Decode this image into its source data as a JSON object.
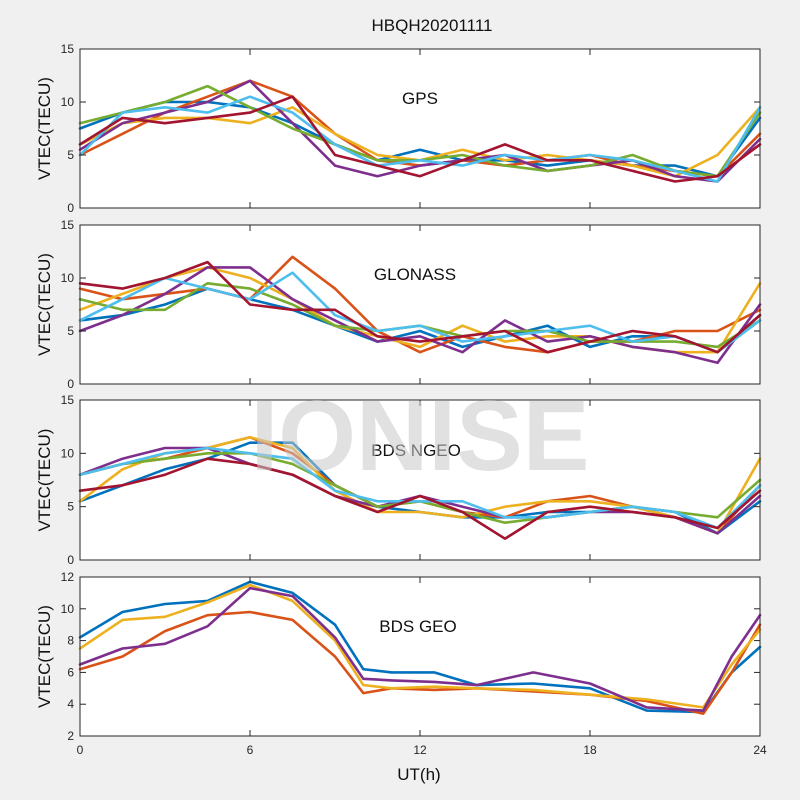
{
  "figure": {
    "title": "HBQH20201111",
    "watermark": "IONISE",
    "xlabel": "UT(h)"
  },
  "chart_data": [
    {
      "type": "line",
      "panel_label": "GPS",
      "ylabel": "VTEC(TECU)",
      "xlim": [
        0,
        24
      ],
      "ylim": [
        0,
        15
      ],
      "xticks": [
        "0",
        "6",
        "12",
        "18",
        "24"
      ],
      "yticks": [
        "0",
        "5",
        "10",
        "15"
      ],
      "grid": false,
      "series": [
        {
          "color": "#0072BD",
          "x": [
            0,
            1.5,
            3,
            4.5,
            6,
            7.5,
            9,
            10.5,
            12,
            13.5,
            15,
            16.5,
            18,
            19.5,
            21,
            22.5,
            24
          ],
          "y": [
            7.5,
            9,
            10,
            10,
            9.5,
            8,
            6,
            4.5,
            5.5,
            4.5,
            4.5,
            4,
            4.5,
            4,
            4,
            3,
            8.5
          ]
        },
        {
          "color": "#D95319",
          "x": [
            0,
            1.5,
            3,
            4.5,
            6,
            7.5,
            9,
            10.5,
            12,
            13.5,
            15,
            16.5,
            18,
            19.5,
            21,
            22.5,
            24
          ],
          "y": [
            5,
            7,
            9,
            10.5,
            12,
            10.5,
            7,
            4.5,
            4,
            4.5,
            4,
            4.5,
            5,
            4,
            3.5,
            3,
            7
          ]
        },
        {
          "color": "#EDB120",
          "x": [
            0,
            1.5,
            3,
            4.5,
            6,
            7.5,
            9,
            10.5,
            12,
            13.5,
            15,
            16.5,
            18,
            19.5,
            21,
            22.5,
            24
          ],
          "y": [
            6,
            8,
            8.5,
            8.5,
            8,
            9.5,
            7,
            5,
            4.5,
            5.5,
            4.5,
            5,
            4.5,
            4,
            3,
            5,
            9.5
          ]
        },
        {
          "color": "#7E2F8E",
          "x": [
            0,
            1.5,
            3,
            4.5,
            6,
            7.5,
            9,
            10.5,
            12,
            13.5,
            15,
            16.5,
            18,
            19.5,
            21,
            22.5,
            24
          ],
          "y": [
            5.5,
            8,
            9,
            10,
            12,
            8,
            4,
            3,
            4,
            4.5,
            5,
            3.5,
            4,
            4.5,
            3,
            2.5,
            6.5
          ]
        },
        {
          "color": "#77AC30",
          "x": [
            0,
            1.5,
            3,
            4.5,
            6,
            7.5,
            9,
            10.5,
            12,
            13.5,
            15,
            16.5,
            18,
            19.5,
            21,
            22.5,
            24
          ],
          "y": [
            8,
            9,
            10,
            11.5,
            9.5,
            7.5,
            6,
            4.5,
            4.5,
            5,
            4,
            3.5,
            4,
            5,
            3.5,
            3,
            9
          ]
        },
        {
          "color": "#4DBEEE",
          "x": [
            0,
            1.5,
            3,
            4.5,
            6,
            7.5,
            9,
            10.5,
            12,
            13.5,
            15,
            16.5,
            18,
            19.5,
            21,
            22.5,
            24
          ],
          "y": [
            5,
            9,
            9.5,
            9,
            10.5,
            9,
            6,
            4,
            4.5,
            4,
            5,
            4.5,
            5,
            4.5,
            3.5,
            2.5,
            9.5
          ]
        },
        {
          "color": "#A2142F",
          "x": [
            0,
            1.5,
            3,
            4.5,
            6,
            7.5,
            9,
            10.5,
            12,
            13.5,
            15,
            16.5,
            18,
            19.5,
            21,
            22.5,
            24
          ],
          "y": [
            6,
            8.5,
            8,
            8.5,
            9,
            10.5,
            5,
            4,
            3,
            4.5,
            6,
            4.5,
            4.5,
            3.5,
            2.5,
            3,
            6
          ]
        }
      ]
    },
    {
      "type": "line",
      "panel_label": "GLONASS",
      "ylabel": "VTEC(TECU)",
      "xlim": [
        0,
        24
      ],
      "ylim": [
        0,
        15
      ],
      "xticks": [
        "0",
        "6",
        "12",
        "18",
        "24"
      ],
      "yticks": [
        "0",
        "5",
        "10",
        "15"
      ],
      "grid": false,
      "series": [
        {
          "color": "#0072BD",
          "x": [
            0,
            1.5,
            3,
            4.5,
            6,
            7.5,
            9,
            10.5,
            12,
            13.5,
            15,
            16.5,
            18,
            19.5,
            21,
            22.5,
            24
          ],
          "y": [
            6,
            6.5,
            7.5,
            9,
            8,
            7,
            5.5,
            4,
            5,
            3.5,
            4.5,
            5.5,
            3.5,
            4.5,
            4.5,
            3,
            6.5
          ]
        },
        {
          "color": "#D95319",
          "x": [
            0,
            1.5,
            3,
            4.5,
            6,
            7.5,
            9,
            10.5,
            12,
            13.5,
            15,
            16.5,
            18,
            19.5,
            21,
            22.5,
            24
          ],
          "y": [
            9,
            8,
            8.5,
            9,
            8,
            12,
            9,
            5,
            3,
            4.5,
            3.5,
            3,
            4,
            4,
            5,
            5,
            7
          ]
        },
        {
          "color": "#EDB120",
          "x": [
            0,
            1.5,
            3,
            4.5,
            6,
            7.5,
            9,
            10.5,
            12,
            13.5,
            15,
            16.5,
            18,
            19.5,
            21,
            22.5,
            24
          ],
          "y": [
            7,
            8.5,
            10,
            11,
            10,
            8,
            5.5,
            4.5,
            3.5,
            5.5,
            4,
            4.5,
            4.5,
            3.5,
            3,
            3,
            9.5
          ]
        },
        {
          "color": "#7E2F8E",
          "x": [
            0,
            1.5,
            3,
            4.5,
            6,
            7.5,
            9,
            10.5,
            12,
            13.5,
            15,
            16.5,
            18,
            19.5,
            21,
            22.5,
            24
          ],
          "y": [
            5,
            6.5,
            8.5,
            11,
            11,
            8,
            6,
            4,
            4.5,
            3,
            6,
            4,
            4.5,
            3.5,
            3,
            2,
            7.5
          ]
        },
        {
          "color": "#77AC30",
          "x": [
            0,
            1.5,
            3,
            4.5,
            6,
            7.5,
            9,
            10.5,
            12,
            13.5,
            15,
            16.5,
            18,
            19.5,
            21,
            22.5,
            24
          ],
          "y": [
            8,
            7,
            7,
            9.5,
            9,
            7.5,
            5.5,
            5,
            5.5,
            4.5,
            5,
            5,
            4,
            4,
            4,
            3.5,
            6
          ]
        },
        {
          "color": "#4DBEEE",
          "x": [
            0,
            1.5,
            3,
            4.5,
            6,
            7.5,
            9,
            10.5,
            12,
            13.5,
            15,
            16.5,
            18,
            19.5,
            21,
            22.5,
            24
          ],
          "y": [
            6,
            8,
            10,
            9,
            8,
            10.5,
            6.5,
            5,
            5.5,
            4,
            4.5,
            5,
            5.5,
            4,
            4.5,
            3,
            6
          ]
        },
        {
          "color": "#A2142F",
          "x": [
            0,
            1.5,
            3,
            4.5,
            6,
            7.5,
            9,
            10.5,
            12,
            13.5,
            15,
            16.5,
            18,
            19.5,
            21,
            22.5,
            24
          ],
          "y": [
            9.5,
            9,
            10,
            11.5,
            7.5,
            7,
            7,
            4.5,
            4,
            4.5,
            5,
            3,
            4,
            5,
            4.5,
            3,
            6.5
          ]
        }
      ]
    },
    {
      "type": "line",
      "panel_label": "BDS NGEO",
      "ylabel": "VTEC(TECU)",
      "xlim": [
        0,
        24
      ],
      "ylim": [
        0,
        15
      ],
      "xticks": [
        "0",
        "6",
        "12",
        "18",
        "24"
      ],
      "yticks": [
        "0",
        "5",
        "10",
        "15"
      ],
      "grid": false,
      "series": [
        {
          "color": "#0072BD",
          "x": [
            0,
            1.5,
            3,
            4.5,
            6,
            7.5,
            9,
            10.5,
            12,
            13.5,
            15,
            16.5,
            18,
            19.5,
            21,
            22.5,
            24
          ],
          "y": [
            5.5,
            7,
            8.5,
            9.5,
            11,
            11,
            7,
            5,
            4.5,
            4,
            4,
            4.5,
            4.5,
            5,
            4.5,
            2.5,
            5.5
          ]
        },
        {
          "color": "#D95319",
          "x": [
            0,
            1.5,
            3,
            4.5,
            6,
            7.5,
            9,
            10.5,
            12,
            13.5,
            15,
            16.5,
            18,
            19.5,
            21,
            22.5,
            24
          ],
          "y": [
            8,
            9,
            9.5,
            10.5,
            11.5,
            10,
            7,
            5,
            5.5,
            4.5,
            4,
            5.5,
            6,
            5,
            4,
            2.5,
            7
          ]
        },
        {
          "color": "#EDB120",
          "x": [
            0,
            1.5,
            3,
            4.5,
            6,
            7.5,
            9,
            10.5,
            12,
            13.5,
            15,
            16.5,
            18,
            19.5,
            21,
            22.5,
            24
          ],
          "y": [
            5.5,
            8.5,
            10,
            10.5,
            11.5,
            10.5,
            6.5,
            4.5,
            4.5,
            4,
            5,
            5.5,
            5.5,
            5,
            4,
            2.5,
            9.5
          ]
        },
        {
          "color": "#7E2F8E",
          "x": [
            0,
            1.5,
            3,
            4.5,
            6,
            7.5,
            9,
            10.5,
            12,
            13.5,
            15,
            16.5,
            18,
            19.5,
            21,
            22.5,
            24
          ],
          "y": [
            8,
            9.5,
            10.5,
            10.5,
            9,
            8,
            6,
            5,
            6,
            5,
            4,
            4,
            4.5,
            4.5,
            4,
            2.5,
            6
          ]
        },
        {
          "color": "#77AC30",
          "x": [
            0,
            1.5,
            3,
            4.5,
            6,
            7.5,
            9,
            10.5,
            12,
            13.5,
            15,
            16.5,
            18,
            19.5,
            21,
            22.5,
            24
          ],
          "y": [
            8,
            9,
            9.5,
            10,
            10,
            9,
            7,
            5,
            5.5,
            4.5,
            3.5,
            4,
            4.5,
            5,
            4.5,
            4,
            7.5
          ]
        },
        {
          "color": "#4DBEEE",
          "x": [
            0,
            1.5,
            3,
            4.5,
            6,
            7.5,
            9,
            10.5,
            12,
            13.5,
            15,
            16.5,
            18,
            19.5,
            21,
            22.5,
            24
          ],
          "y": [
            8,
            9,
            10,
            10.5,
            10,
            9.5,
            6.5,
            5.5,
            5.5,
            5.5,
            4,
            4,
            4.5,
            5,
            4.5,
            3,
            7
          ]
        },
        {
          "color": "#A2142F",
          "x": [
            0,
            1.5,
            3,
            4.5,
            6,
            7.5,
            9,
            10.5,
            12,
            13.5,
            15,
            16.5,
            18,
            19.5,
            21,
            22.5,
            24
          ],
          "y": [
            6.5,
            7,
            8,
            9.5,
            9,
            8,
            6,
            4.5,
            6,
            4.5,
            2,
            4.5,
            5,
            4.5,
            4,
            3,
            6.5
          ]
        }
      ]
    },
    {
      "type": "line",
      "panel_label": "BDS GEO",
      "ylabel": "VTEC(TECU)",
      "xlim": [
        0,
        24
      ],
      "ylim": [
        2,
        12
      ],
      "xticks": [
        "0",
        "6",
        "12",
        "18",
        "24"
      ],
      "yticks": [
        "2",
        "4",
        "6",
        "8",
        "10",
        "12"
      ],
      "grid": false,
      "series": [
        {
          "color": "#0072BD",
          "x": [
            0,
            1.5,
            3,
            4.5,
            6,
            7.5,
            9,
            10,
            11,
            12.5,
            14,
            16,
            18,
            20,
            22,
            23,
            24
          ],
          "y": [
            8.2,
            9.8,
            10.3,
            10.5,
            11.7,
            11,
            9,
            6.2,
            6,
            6,
            5.2,
            5.3,
            5,
            3.6,
            3.5,
            6,
            7.6
          ]
        },
        {
          "color": "#D95319",
          "x": [
            0,
            1.5,
            3,
            4.5,
            6,
            7.5,
            9,
            10,
            11,
            12.5,
            14,
            16,
            18,
            20,
            22,
            23,
            24
          ],
          "y": [
            6.2,
            7,
            8.6,
            9.6,
            9.8,
            9.3,
            7,
            4.7,
            5,
            4.9,
            5,
            4.8,
            4.6,
            4.2,
            3.4,
            6,
            9
          ]
        },
        {
          "color": "#EDB120",
          "x": [
            0,
            1.5,
            3,
            4.5,
            6,
            7.5,
            9,
            10,
            11,
            12.5,
            14,
            16,
            18,
            20,
            22,
            23,
            24
          ],
          "y": [
            7.5,
            9.3,
            9.5,
            10.4,
            11.5,
            10.5,
            8,
            5.2,
            5,
            5.1,
            5,
            4.9,
            4.6,
            4.3,
            3.8,
            6.5,
            8.7
          ]
        },
        {
          "color": "#7E2F8E",
          "x": [
            0,
            1.5,
            3,
            4.5,
            6,
            7.5,
            9,
            10,
            11,
            12.5,
            14,
            16,
            18,
            20,
            22,
            23,
            24
          ],
          "y": [
            6.5,
            7.5,
            7.8,
            8.9,
            11.3,
            10.8,
            8.2,
            5.6,
            5.5,
            5.4,
            5.2,
            6,
            5.3,
            3.8,
            3.6,
            7,
            9.6
          ]
        }
      ]
    }
  ]
}
